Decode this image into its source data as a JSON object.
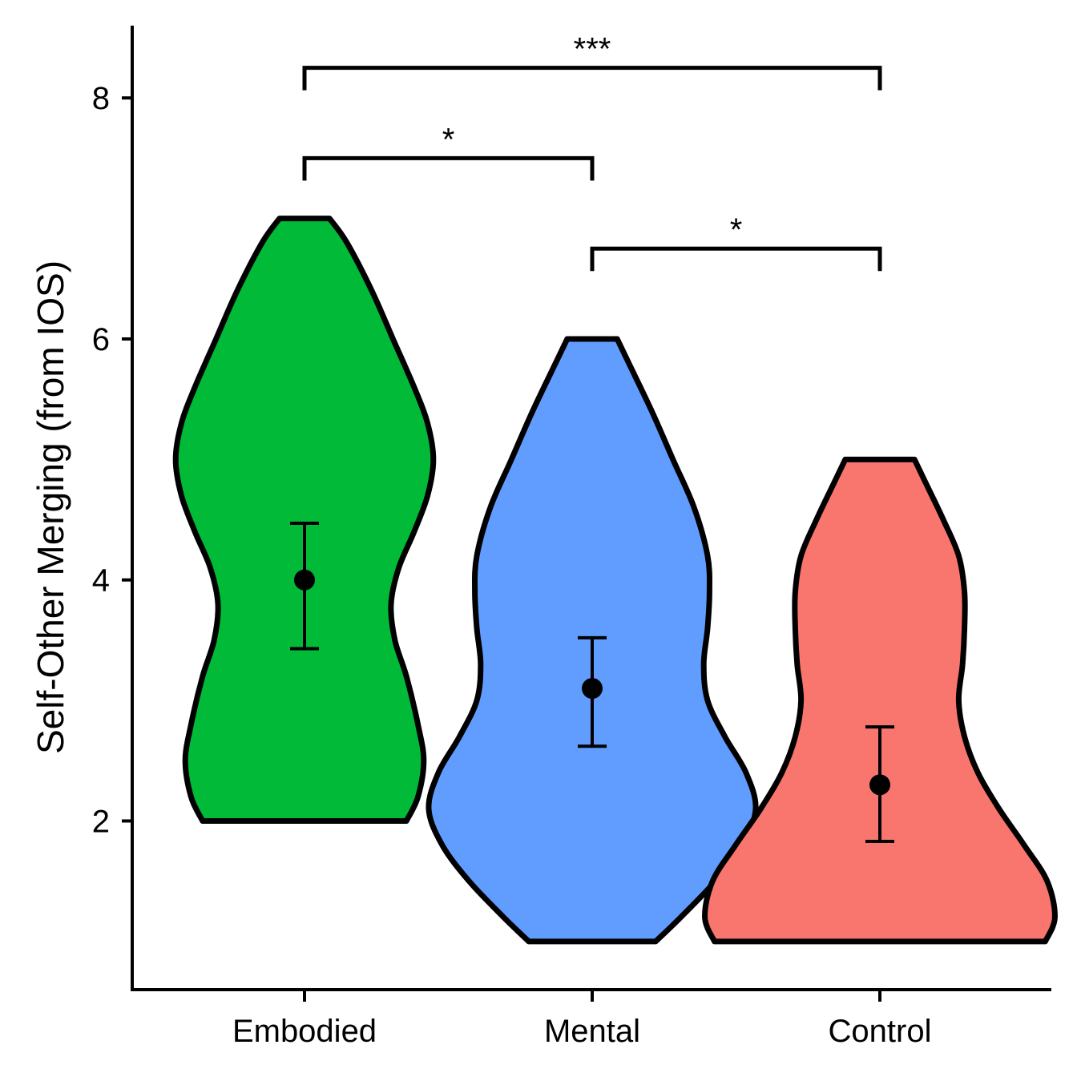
{
  "chart_data": {
    "type": "violin",
    "ylabel": "Self-Other Merging (from IOS)",
    "xlabel": "",
    "categories": [
      "Embodied",
      "Mental",
      "Control"
    ],
    "yticks": [
      2,
      4,
      6,
      8
    ],
    "ylim": [
      0.6,
      8.6
    ],
    "groups": [
      {
        "name": "Embodied",
        "color": "#00BA38",
        "min": 2,
        "max": 7,
        "mean": 4.0,
        "ci_low": 3.43,
        "ci_high": 4.47,
        "density": [
          [
            2.0,
            0.53
          ],
          [
            2.2,
            0.59
          ],
          [
            2.5,
            0.62
          ],
          [
            2.8,
            0.59
          ],
          [
            3.2,
            0.53
          ],
          [
            3.5,
            0.47
          ],
          [
            3.8,
            0.45
          ],
          [
            4.1,
            0.49
          ],
          [
            4.4,
            0.57
          ],
          [
            4.7,
            0.64
          ],
          [
            5.0,
            0.67
          ],
          [
            5.3,
            0.64
          ],
          [
            5.6,
            0.57
          ],
          [
            6.0,
            0.46
          ],
          [
            6.4,
            0.35
          ],
          [
            6.8,
            0.22
          ],
          [
            7.0,
            0.13
          ]
        ]
      },
      {
        "name": "Mental",
        "color": "#619CFF",
        "min": 1,
        "max": 6,
        "mean": 3.1,
        "ci_low": 2.62,
        "ci_high": 3.52,
        "density": [
          [
            1.0,
            0.33
          ],
          [
            1.2,
            0.46
          ],
          [
            1.5,
            0.64
          ],
          [
            1.8,
            0.78
          ],
          [
            2.1,
            0.85
          ],
          [
            2.4,
            0.8
          ],
          [
            2.7,
            0.69
          ],
          [
            3.0,
            0.6
          ],
          [
            3.3,
            0.58
          ],
          [
            3.6,
            0.6
          ],
          [
            3.9,
            0.61
          ],
          [
            4.2,
            0.6
          ],
          [
            4.6,
            0.53
          ],
          [
            5.0,
            0.42
          ],
          [
            5.4,
            0.31
          ],
          [
            5.8,
            0.19
          ],
          [
            6.0,
            0.13
          ]
        ]
      },
      {
        "name": "Control",
        "color": "#F8766D",
        "min": 1,
        "max": 5,
        "mean": 2.3,
        "ci_low": 1.83,
        "ci_high": 2.78,
        "density": [
          [
            1.0,
            0.86
          ],
          [
            1.2,
            0.91
          ],
          [
            1.5,
            0.87
          ],
          [
            1.8,
            0.75
          ],
          [
            2.1,
            0.62
          ],
          [
            2.4,
            0.51
          ],
          [
            2.7,
            0.44
          ],
          [
            3.0,
            0.41
          ],
          [
            3.3,
            0.43
          ],
          [
            3.6,
            0.44
          ],
          [
            3.9,
            0.44
          ],
          [
            4.2,
            0.41
          ],
          [
            4.5,
            0.33
          ],
          [
            4.8,
            0.24
          ],
          [
            5.0,
            0.18
          ]
        ]
      }
    ],
    "comparisons": [
      {
        "from": "Embodied",
        "to": "Mental",
        "label": "*",
        "y": 7.5
      },
      {
        "from": "Mental",
        "to": "Control",
        "label": "*",
        "y": 6.75
      },
      {
        "from": "Embodied",
        "to": "Control",
        "label": "***",
        "y": 8.25
      }
    ]
  }
}
